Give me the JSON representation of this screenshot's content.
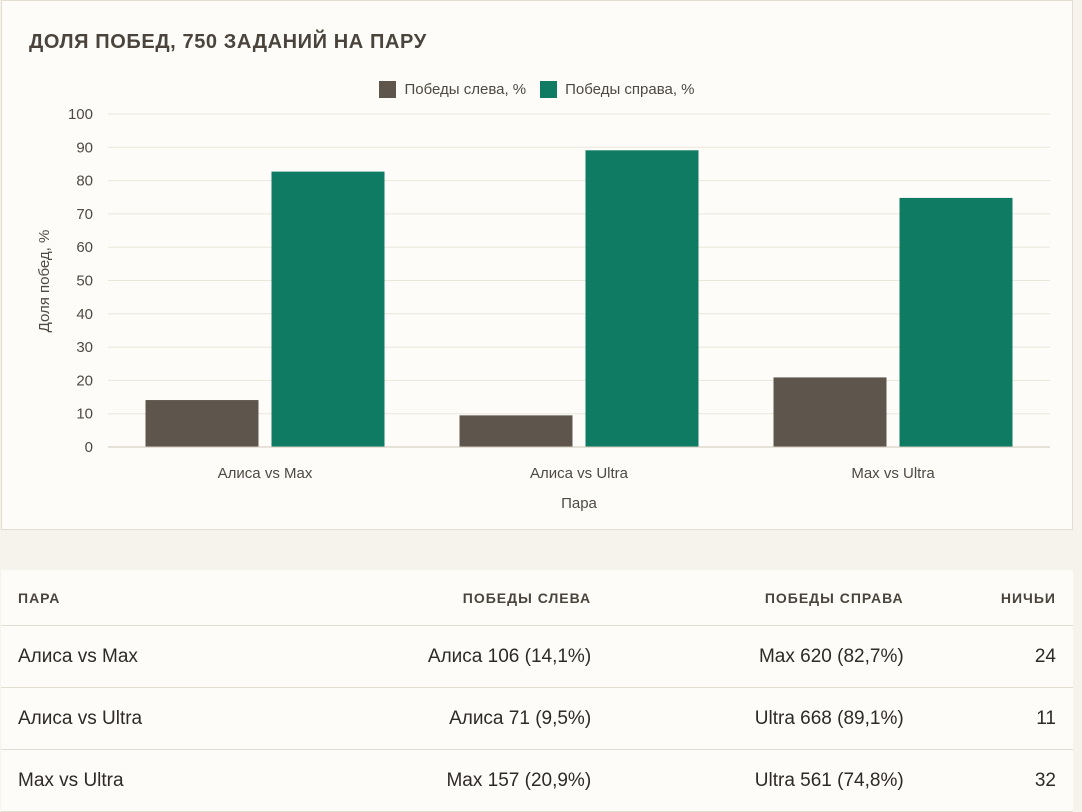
{
  "chart_data": {
    "type": "bar",
    "title": "ДОЛЯ ПОБЕД, 750 ЗАДАНИЙ НА ПАРУ",
    "xlabel": "Пара",
    "ylabel": "Доля побед, %",
    "ylim": [
      0,
      100
    ],
    "yticks": [
      "0",
      "10",
      "20",
      "30",
      "40",
      "50",
      "60",
      "70",
      "80",
      "90",
      "100"
    ],
    "categories": [
      "Алиса vs Max",
      "Алиса vs Ultra",
      "Max vs Ultra"
    ],
    "series": [
      {
        "name": "Победы слева, %",
        "values": [
          14.1,
          9.5,
          20.9
        ],
        "color": "#5e564d"
      },
      {
        "name": "Победы справа, %",
        "values": [
          82.7,
          89.1,
          74.8
        ],
        "color": "#0f7b63"
      }
    ],
    "grid": true,
    "legend": "top-center"
  },
  "table": {
    "headers": [
      "ПАРА",
      "ПОБЕДЫ СЛЕВА",
      "ПОБЕДЫ СПРАВА",
      "НИЧЬИ"
    ],
    "rows": [
      [
        "Алиса vs Max",
        "Алиса 106 (14,1%)",
        "Max 620 (82,7%)",
        "24"
      ],
      [
        "Алиса vs Ultra",
        "Алиса 71 (9,5%)",
        "Ultra 668 (89,1%)",
        "11"
      ],
      [
        "Max vs Ultra",
        "Max 157 (20,9%)",
        "Ultra 561 (74,8%)",
        "32"
      ]
    ]
  }
}
